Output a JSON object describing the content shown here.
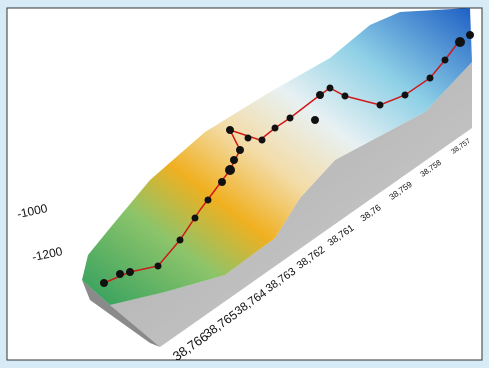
{
  "x_axis": {
    "ticks": [
      "38,766",
      "38,765",
      "38,764",
      "38,763",
      "38,762",
      "38,761",
      "38,76",
      "38,759",
      "38,758",
      "38,757"
    ]
  },
  "z_axis": {
    "ticks": [
      "-1000",
      "-1200"
    ]
  }
}
